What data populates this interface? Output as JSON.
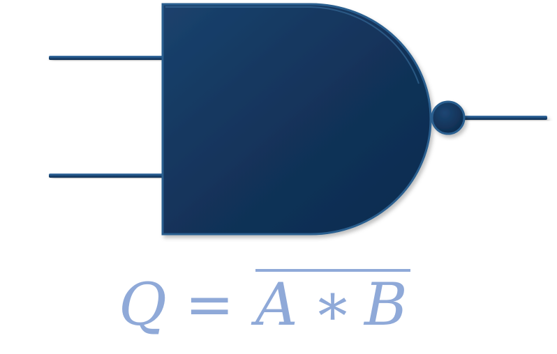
{
  "diagram": {
    "type": "logic-gate",
    "gate": "NAND",
    "colors": {
      "gate_fill": "#12335a",
      "gate_edge": "#2a5f8f",
      "wire": "#1c4a78",
      "formula": "#8fa9d8"
    },
    "formula": {
      "output": "Q",
      "equals": "=",
      "input_a": "A",
      "operator": "∗",
      "input_b": "B"
    }
  }
}
